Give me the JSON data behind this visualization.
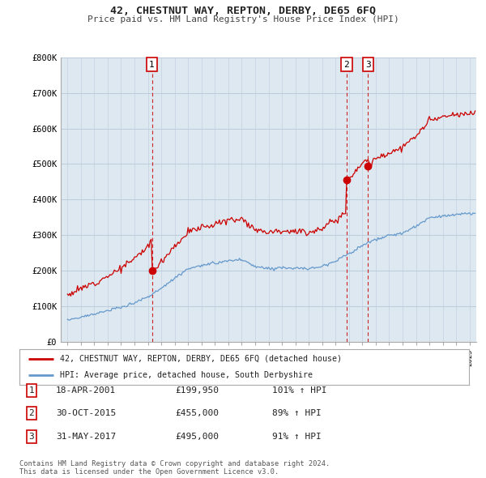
{
  "title": "42, CHESTNUT WAY, REPTON, DERBY, DE65 6FQ",
  "subtitle": "Price paid vs. HM Land Registry's House Price Index (HPI)",
  "legend_line1": "42, CHESTNUT WAY, REPTON, DERBY, DE65 6FQ (detached house)",
  "legend_line2": "HPI: Average price, detached house, South Derbyshire",
  "footer1": "Contains HM Land Registry data © Crown copyright and database right 2024.",
  "footer2": "This data is licensed under the Open Government Licence v3.0.",
  "transactions": [
    {
      "num": 1,
      "date": "18-APR-2001",
      "price": "£199,950",
      "hpi": "101% ↑ HPI",
      "year": 2001.3,
      "price_val": 199950
    },
    {
      "num": 2,
      "date": "30-OCT-2015",
      "price": "£455,000",
      "hpi": "89% ↑ HPI",
      "year": 2015.83,
      "price_val": 455000
    },
    {
      "num": 3,
      "date": "31-MAY-2017",
      "price": "£495,000",
      "hpi": "91% ↑ HPI",
      "year": 2017.42,
      "price_val": 495000
    }
  ],
  "red_line_color": "#cc0000",
  "blue_line_color": "#6699cc",
  "vline_color": "#cc0000",
  "marker_box_color": "#cc0000",
  "grid_color": "#cccccc",
  "bg_color": "#dde8f0",
  "plot_bg_color": "#dde8f0",
  "outer_bg_color": "#ffffff",
  "ylim": [
    0,
    800000
  ],
  "xlim_left": 1994.5,
  "xlim_right": 2025.5
}
